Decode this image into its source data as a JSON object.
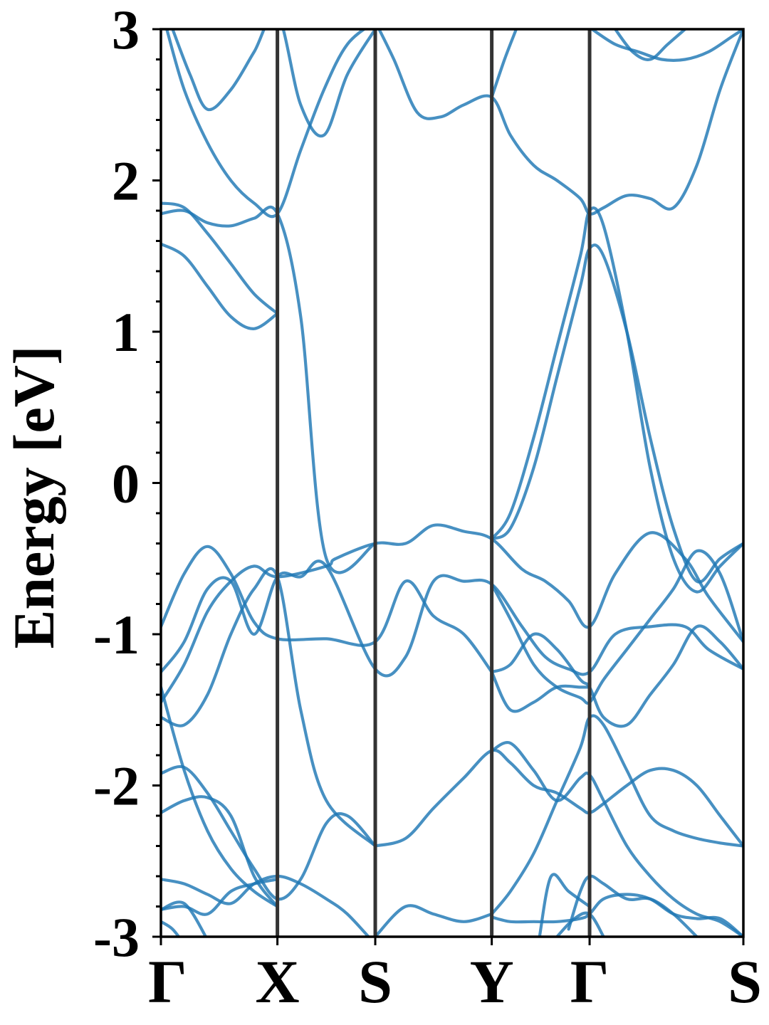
{
  "chart_data": {
    "type": "line",
    "title": "",
    "xlabel": "",
    "ylabel": "Energy [eV]",
    "ylim": [
      -3,
      3
    ],
    "yticks": [
      -3,
      -2,
      -1,
      0,
      1,
      2,
      3
    ],
    "yticklabels": [
      "-3",
      "-2",
      "-1",
      "0",
      "1",
      "2",
      "3"
    ],
    "y_minor_step": 0.2,
    "kpoints": [
      {
        "label": "Γ",
        "x": 0.0
      },
      {
        "label": "X",
        "x": 1.0
      },
      {
        "label": "S",
        "x": 1.84
      },
      {
        "label": "Y",
        "x": 2.84
      },
      {
        "label": "Γ",
        "x": 3.68
      },
      {
        "label": "S",
        "x": 5.0
      }
    ],
    "xlim": [
      0,
      5.0
    ],
    "grid": false,
    "line_color": "#1f77b4",
    "kpath_line_color": "#333333",
    "series": [
      {
        "x": [
          0,
          0.2,
          0.4,
          0.6,
          0.8,
          1.0,
          1.42,
          1.84,
          2.1,
          2.34,
          2.6,
          2.84
        ],
        "values": [
          -0.95,
          -0.6,
          -0.42,
          -0.6,
          -0.92,
          -1.03,
          -1.03,
          -1.05,
          -0.65,
          -0.88,
          -1.0,
          -1.25
        ]
      },
      {
        "x": [
          0,
          0.2,
          0.4,
          0.6,
          0.8,
          1.0,
          1.2,
          1.42,
          1.84,
          2.1,
          2.34,
          2.6,
          2.84,
          3.1,
          3.3,
          3.5,
          3.68,
          3.9,
          4.2,
          4.5,
          4.7,
          5.0
        ],
        "values": [
          -1.25,
          -1.05,
          -0.7,
          -0.65,
          -1.0,
          -0.62,
          -0.62,
          -0.55,
          -1.23,
          -1.15,
          -0.65,
          -0.65,
          -0.67,
          -0.95,
          -1.15,
          -1.23,
          -1.25,
          -1.0,
          -0.95,
          -0.95,
          -1.1,
          -1.23
        ]
      },
      {
        "x": [
          0,
          0.2,
          0.4,
          0.6,
          0.8,
          1.0,
          1.42,
          1.5,
          1.84,
          2.1,
          2.34,
          2.6,
          2.84,
          3.1,
          3.3,
          3.5,
          3.68,
          3.9,
          4.2,
          4.5,
          4.7,
          5.0
        ],
        "values": [
          -1.45,
          -1.2,
          -0.85,
          -0.65,
          -0.55,
          -0.62,
          -0.55,
          -0.5,
          -0.4,
          -0.4,
          -0.28,
          -0.32,
          -0.37,
          -0.57,
          -0.65,
          -0.78,
          -0.95,
          -0.6,
          -0.33,
          -0.5,
          -0.75,
          -1.05
        ]
      },
      {
        "x": [
          0,
          0.2,
          0.4,
          0.6,
          0.8,
          1.0,
          1.2,
          1.42,
          1.84
        ],
        "values": [
          1.78,
          1.8,
          1.72,
          1.7,
          1.75,
          1.78,
          1.1,
          -0.5,
          -0.4
        ]
      },
      {
        "x": [
          0,
          0.2,
          0.4,
          0.6,
          0.8,
          1.0
        ],
        "values": [
          1.85,
          1.82,
          1.65,
          1.45,
          1.25,
          1.12
        ]
      },
      {
        "x": [
          0,
          0.2,
          0.4,
          0.6,
          0.8,
          1.0
        ],
        "values": [
          1.58,
          1.5,
          1.3,
          1.1,
          1.02,
          1.12
        ]
      },
      {
        "x": [
          0.1,
          0.25,
          0.4,
          0.6,
          0.8,
          1.0,
          1.2,
          1.4,
          1.6,
          1.84
        ],
        "values": [
          3.0,
          2.7,
          2.47,
          2.6,
          2.85,
          3.1,
          2.5,
          2.3,
          2.7,
          3.0
        ]
      },
      {
        "x": [
          0.05,
          0.2,
          0.4,
          0.6,
          0.8,
          1.0,
          1.2,
          1.4,
          1.6,
          1.84
        ],
        "values": [
          3.0,
          2.6,
          2.25,
          2.0,
          1.85,
          1.78,
          2.2,
          2.6,
          2.9,
          3.05
        ]
      },
      {
        "x": [
          1.84,
          2.0,
          2.2,
          2.4,
          2.6,
          2.84,
          3.0,
          3.2,
          3.4,
          3.6,
          3.68,
          3.8,
          4.0,
          4.2,
          4.4,
          4.6,
          4.8,
          5.0
        ],
        "values": [
          3.05,
          2.8,
          2.45,
          2.42,
          2.5,
          2.55,
          2.3,
          2.1,
          2.0,
          1.88,
          1.78,
          1.82,
          1.9,
          1.88,
          1.82,
          2.1,
          2.6,
          3.0
        ]
      },
      {
        "x": [
          2.84,
          2.95,
          3.05
        ],
        "values": [
          2.55,
          2.8,
          3.0
        ]
      },
      {
        "x": [
          3.7,
          3.9,
          4.1,
          4.3,
          4.5,
          4.7,
          4.9,
          5.0
        ],
        "values": [
          3.0,
          2.9,
          2.85,
          2.8,
          2.8,
          2.85,
          2.95,
          3.0
        ]
      },
      {
        "x": [
          3.9,
          4.05,
          4.2,
          4.35,
          4.5
        ],
        "values": [
          3.0,
          2.85,
          2.8,
          2.9,
          3.0
        ]
      },
      {
        "x": [
          2.84,
          3.0,
          3.2,
          3.4,
          3.6,
          3.68,
          3.8,
          4.0,
          4.2,
          4.4,
          4.6,
          4.8,
          5.0
        ],
        "values": [
          -0.37,
          -0.2,
          0.3,
          0.9,
          1.5,
          1.8,
          1.7,
          1.0,
          0.1,
          -0.5,
          -0.72,
          -0.55,
          -0.4
        ]
      },
      {
        "x": [
          2.84,
          3.0,
          3.2,
          3.4,
          3.6,
          3.68,
          3.8,
          4.0,
          4.2,
          4.4,
          4.6,
          4.8,
          5.0
        ],
        "values": [
          -0.37,
          -0.3,
          0.1,
          0.7,
          1.3,
          1.55,
          1.5,
          1.0,
          0.3,
          -0.3,
          -0.65,
          -0.5,
          -0.4
        ]
      },
      {
        "x": [
          0,
          0.2,
          0.4,
          0.6,
          0.8,
          1.0,
          1.2,
          1.42,
          1.84
        ],
        "values": [
          -1.55,
          -1.6,
          -1.4,
          -1.0,
          -0.7,
          -0.62,
          -1.5,
          -2.1,
          -2.4
        ]
      },
      {
        "x": [
          2.84,
          3.0,
          3.2,
          3.4,
          3.6,
          3.68,
          3.8,
          4.0,
          4.2,
          4.4,
          4.6,
          4.8,
          5.0
        ],
        "values": [
          -0.67,
          -0.9,
          -1.2,
          -1.35,
          -1.42,
          -1.45,
          -1.3,
          -1.1,
          -0.9,
          -0.7,
          -0.45,
          -0.6,
          -1.05
        ]
      },
      {
        "x": [
          2.84,
          3.0,
          3.2,
          3.4,
          3.6,
          3.68,
          3.8,
          4.0,
          4.2,
          4.4,
          4.6,
          4.8,
          5.0
        ],
        "values": [
          -1.25,
          -1.2,
          -1.0,
          -1.1,
          -1.3,
          -1.35,
          -1.55,
          -1.6,
          -1.4,
          -1.2,
          -0.95,
          -1.05,
          -1.23
        ]
      },
      {
        "x": [
          2.84,
          3.0,
          3.2,
          3.4,
          3.6,
          3.68
        ],
        "values": [
          -1.25,
          -1.5,
          -1.45,
          -1.35,
          -1.35,
          -1.35
        ]
      },
      {
        "x": [
          1.84,
          2.1,
          2.34,
          2.6,
          2.84,
          3.0,
          3.2,
          3.4,
          3.6,
          3.68,
          3.8,
          4.0,
          4.2,
          4.4,
          4.6,
          4.8,
          5.0
        ],
        "values": [
          -2.4,
          -2.35,
          -2.15,
          -1.95,
          -1.77,
          -1.85,
          -2.0,
          -2.05,
          -2.15,
          -2.18,
          -2.12,
          -2.0,
          -1.9,
          -1.9,
          -2.0,
          -2.2,
          -2.4
        ]
      },
      {
        "x": [
          2.84,
          3.0,
          3.2,
          3.4,
          3.6,
          3.68,
          3.8,
          4.0,
          4.2,
          4.4,
          4.6,
          4.8,
          5.0
        ],
        "values": [
          -1.77,
          -1.72,
          -1.9,
          -2.1,
          -1.95,
          -1.93,
          -2.1,
          -2.4,
          -2.6,
          -2.75,
          -2.85,
          -2.9,
          -3.0
        ]
      },
      {
        "x": [
          2.84,
          3.0,
          3.2,
          3.4,
          3.6,
          3.68,
          3.8,
          4.0,
          4.2,
          4.4,
          4.6,
          4.8,
          5.0
        ],
        "values": [
          -2.85,
          -2.7,
          -2.45,
          -2.1,
          -1.75,
          -1.55,
          -1.6,
          -1.9,
          -2.2,
          -2.3,
          -2.35,
          -2.38,
          -2.4
        ]
      },
      {
        "x": [
          0,
          0.2,
          0.4,
          0.6,
          0.8,
          1.0
        ],
        "values": [
          -1.35,
          -1.9,
          -2.3,
          -2.55,
          -2.7,
          -2.8
        ]
      },
      {
        "x": [
          0,
          0.2,
          0.4,
          0.6,
          0.8,
          1.0,
          1.2,
          1.42,
          1.6,
          1.84
        ],
        "values": [
          -1.92,
          -1.88,
          -2.05,
          -2.3,
          -2.55,
          -2.75,
          -2.62,
          -2.25,
          -2.2,
          -2.4
        ]
      },
      {
        "x": [
          0,
          0.2,
          0.4,
          0.6,
          0.8,
          1.0
        ],
        "values": [
          -2.18,
          -2.1,
          -2.08,
          -2.2,
          -2.6,
          -2.8
        ]
      },
      {
        "x": [
          0,
          0.2,
          0.4,
          0.6,
          0.8,
          1.0,
          1.2,
          1.42,
          1.6,
          1.84
        ],
        "values": [
          -2.62,
          -2.65,
          -2.72,
          -2.78,
          -2.65,
          -2.6,
          -2.65,
          -2.75,
          -2.85,
          -3.05
        ]
      },
      {
        "x": [
          0,
          0.2,
          0.4,
          0.6,
          0.8,
          1.0
        ],
        "values": [
          -2.82,
          -2.8,
          -2.85,
          -2.7,
          -2.65,
          -2.62
        ]
      },
      {
        "x": [
          0,
          0.2,
          0.4
        ],
        "values": [
          -2.82,
          -2.78,
          -3.02
        ]
      },
      {
        "x": [
          0,
          0.1,
          0.2
        ],
        "values": [
          -2.9,
          -2.95,
          -3.05
        ]
      },
      {
        "x": [
          1.84,
          2.1,
          2.34,
          2.6,
          2.84
        ],
        "values": [
          -3.0,
          -2.8,
          -2.85,
          -2.9,
          -2.85
        ]
      },
      {
        "x": [
          2.84,
          3.0,
          3.2,
          3.4,
          3.6,
          3.68,
          3.8,
          4.0,
          4.2,
          4.4,
          4.6,
          4.8,
          5.0
        ],
        "values": [
          -2.87,
          -2.9,
          -2.9,
          -2.9,
          -2.88,
          -2.85,
          -2.75,
          -2.72,
          -2.75,
          -2.85,
          -2.88,
          -2.88,
          -3.0
        ]
      },
      {
        "x": [
          3.25,
          3.35,
          3.5,
          3.68
        ],
        "values": [
          -3.0,
          -2.6,
          -2.7,
          -2.8
        ]
      },
      {
        "x": [
          3.5,
          3.6,
          3.68,
          3.8,
          4.0,
          4.2,
          4.4,
          4.6
        ],
        "values": [
          -2.95,
          -2.7,
          -2.6,
          -2.65,
          -2.75,
          -2.75,
          -2.85,
          -3.0
        ]
      },
      {
        "x": [
          3.4,
          3.55,
          3.68,
          3.8
        ],
        "values": [
          -3.0,
          -2.88,
          -2.85,
          -3.0
        ]
      }
    ]
  }
}
